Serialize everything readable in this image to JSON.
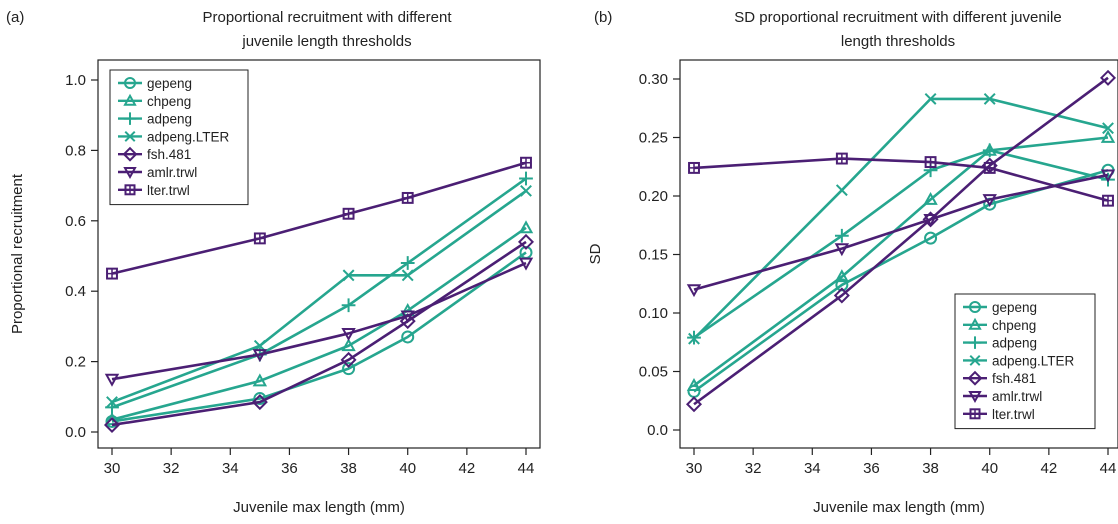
{
  "colors": {
    "teal": "#26a68f",
    "purple": "#4b1f74",
    "axis": "#222222"
  },
  "chart_data": [
    {
      "panel": "(a)",
      "type": "line",
      "title_lines": [
        "Proportional recruitment with different",
        "juvenile length thresholds"
      ],
      "xlabel": "Juvenile max length (mm)",
      "ylabel": "Proportional recruitment",
      "x": [
        30,
        35,
        38,
        40,
        44
      ],
      "xticks": [
        "30",
        "32",
        "34",
        "36",
        "38",
        "40",
        "42",
        "44"
      ],
      "yticks": [
        "0.0",
        "0.2",
        "0.4",
        "0.6",
        "0.8",
        "1.0"
      ],
      "ytick_values": [
        0,
        0.2,
        0.4,
        0.6,
        0.8,
        1.0
      ],
      "xlim": [
        30,
        44
      ],
      "ylim": [
        0,
        1.0
      ],
      "legend_position": "top-left",
      "series": [
        {
          "name": "gepeng",
          "marker": "circle",
          "color": "#26a68f",
          "values": [
            0.03,
            0.095,
            0.18,
            0.27,
            0.51
          ]
        },
        {
          "name": "chpeng",
          "marker": "triangle",
          "color": "#26a68f",
          "values": [
            0.035,
            0.145,
            0.245,
            0.345,
            0.58
          ]
        },
        {
          "name": "adpeng",
          "marker": "plus",
          "color": "#26a68f",
          "values": [
            0.07,
            0.22,
            0.36,
            0.48,
            0.72
          ]
        },
        {
          "name": "adpeng.LTER",
          "marker": "x",
          "color": "#26a68f",
          "values": [
            0.085,
            0.245,
            0.445,
            0.445,
            0.685
          ]
        },
        {
          "name": "fsh.481",
          "marker": "diamond",
          "color": "#4b1f74",
          "values": [
            0.02,
            0.085,
            0.205,
            0.315,
            0.54
          ]
        },
        {
          "name": "amlr.trwl",
          "marker": "triangle-down",
          "color": "#4b1f74",
          "values": [
            0.15,
            0.22,
            0.28,
            0.33,
            0.48
          ]
        },
        {
          "name": "lter.trwl",
          "marker": "square",
          "color": "#4b1f74",
          "values": [
            0.45,
            0.55,
            0.62,
            0.665,
            0.765
          ]
        }
      ]
    },
    {
      "panel": "(b)",
      "type": "line",
      "title_lines": [
        "SD proportional recruitment with different juvenile",
        "length thresholds"
      ],
      "xlabel": "Juvenile max length (mm)",
      "ylabel": "SD",
      "x": [
        30,
        35,
        38,
        40,
        44
      ],
      "xticks": [
        "30",
        "32",
        "34",
        "36",
        "38",
        "40",
        "42",
        "44"
      ],
      "yticks": [
        "0.0",
        "0.05",
        "0.10",
        "0.15",
        "0.20",
        "0.25",
        "0.30"
      ],
      "ytick_values": [
        0,
        0.05,
        0.1,
        0.15,
        0.2,
        0.25,
        0.3
      ],
      "xlim": [
        30,
        44
      ],
      "ylim": [
        0,
        0.3
      ],
      "legend_position": "bottom-right",
      "series": [
        {
          "name": "gepeng",
          "marker": "circle",
          "color": "#26a68f",
          "values": [
            0.033,
            0.124,
            0.164,
            0.193,
            0.222
          ]
        },
        {
          "name": "chpeng",
          "marker": "triangle",
          "color": "#26a68f",
          "values": [
            0.038,
            0.131,
            0.197,
            0.239,
            0.25
          ]
        },
        {
          "name": "adpeng",
          "marker": "plus",
          "color": "#26a68f",
          "values": [
            0.079,
            0.166,
            0.222,
            0.239,
            0.214
          ]
        },
        {
          "name": "adpeng.LTER",
          "marker": "x",
          "color": "#26a68f",
          "values": [
            0.078,
            0.205,
            0.283,
            0.283,
            0.258
          ]
        },
        {
          "name": "fsh.481",
          "marker": "diamond",
          "color": "#4b1f74",
          "values": [
            0.022,
            0.115,
            0.18,
            0.226,
            0.301
          ]
        },
        {
          "name": "amlr.trwl",
          "marker": "triangle-down",
          "color": "#4b1f74",
          "values": [
            0.12,
            0.155,
            0.18,
            0.197,
            0.218
          ]
        },
        {
          "name": "lter.trwl",
          "marker": "square",
          "color": "#4b1f74",
          "values": [
            0.224,
            0.232,
            0.229,
            0.224,
            0.196
          ]
        }
      ]
    }
  ]
}
